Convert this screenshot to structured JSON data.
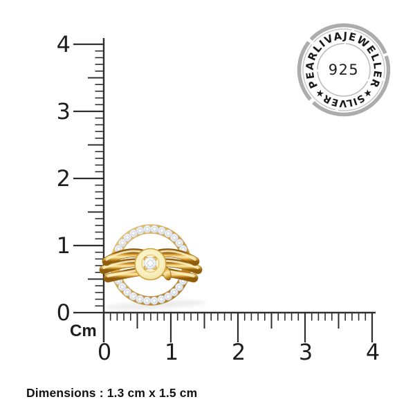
{
  "page": {
    "background": "#ffffff"
  },
  "ruler": {
    "unit_label": "Cm",
    "vertical_labels": [
      "0",
      "1",
      "2",
      "3",
      "4"
    ],
    "horizontal_labels": [
      "0",
      "1",
      "2",
      "3",
      "4"
    ]
  },
  "seal": {
    "arc_text_top": "PEARLIVAJEWELLER",
    "arc_text_bottom": "★SILVER★",
    "center_text": "925"
  },
  "jewel": {
    "icon": "gold-diamond-circle-earring"
  },
  "caption": {
    "text": "Dimensions : 1.3 cm x 1.5 cm"
  },
  "colors": {
    "gold_mid": "#D79F3C",
    "gold_light": "#FBEAB4",
    "gold_dark": "#8F5D0E",
    "disc_pale": "#F8EFBD",
    "diamond": "#F5F7FA",
    "ruler_stroke": "#2E2E2E",
    "label_text": "#1D1D1D",
    "seal_ring": "#A1A1A1",
    "seal_text": "#1A1A1A"
  }
}
